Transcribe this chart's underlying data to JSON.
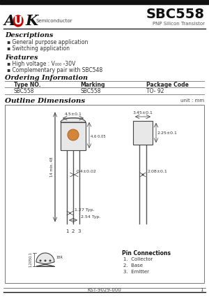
{
  "title": "SBC558",
  "subtitle": "PNP Silicon Transistor",
  "logo_semi": "Semiconductor",
  "section_descriptions": "Descriptions",
  "desc_bullets": [
    "General purpose application",
    "Switching application"
  ],
  "section_features": "Features",
  "feat_bullets": [
    "High voltage : VCEO= -30V",
    "Complementary pair with SBC548"
  ],
  "section_ordering": "Ordering Information",
  "table_headers": [
    "Type NO.",
    "Marking",
    "Package Code"
  ],
  "table_row": [
    "SBC558",
    "SBC558",
    "TO- 92"
  ],
  "section_outline": "Outline Dimensions",
  "unit_label": "unit : mm",
  "pin_connections_title": "Pin Connections",
  "pin_connections": [
    "1.  Collector",
    "2.  Base",
    "3.  Emitter"
  ],
  "footer_text": "KST-9029-000",
  "footer_page": "1",
  "bg_color": "#ffffff",
  "logo_oval_color": "#cc0000",
  "ann_color": "#333333",
  "dim": {
    "width_top": "4.5±0.1",
    "height_body": "4.6 0.05",
    "lead_spacing": "0.4±0.02",
    "pin_spread1": "1.27 Typ.",
    "pin_spread2": "2.54 Typ.",
    "pkg_width": "3.45±0.1",
    "pkg_height": "2.25±0.1",
    "pkg_depth": "2.08±0.1",
    "lead_len": "14 min. 48",
    "bottom_dim": "1.2050.1",
    "bottom_h": "1BR"
  }
}
